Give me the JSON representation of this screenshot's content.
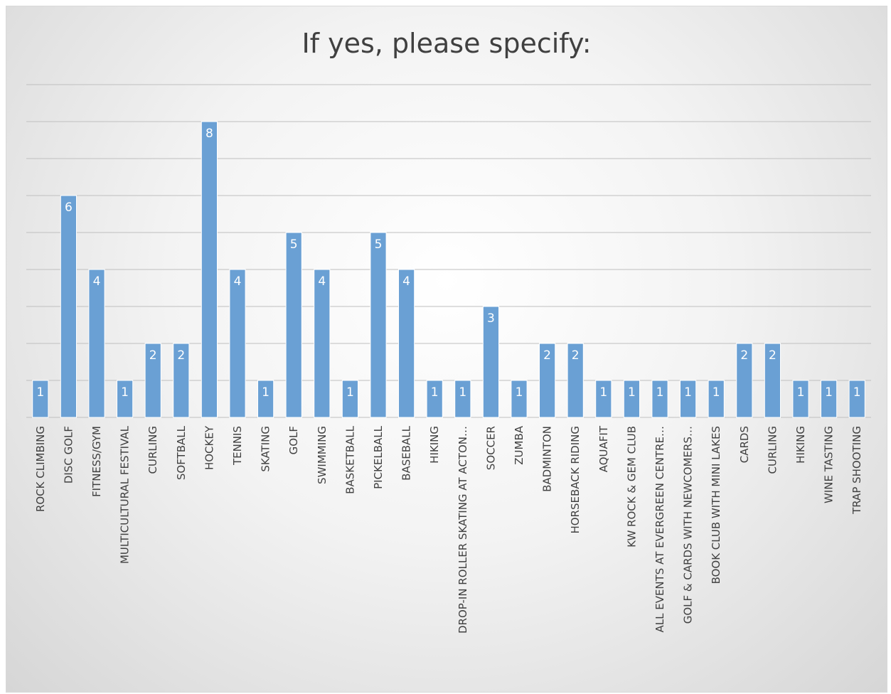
{
  "chart_data": {
    "type": "bar",
    "title": "If yes, please specify:",
    "xlabel": "",
    "ylabel": "",
    "ylim": [
      0,
      9
    ],
    "grid": true,
    "legend": "none",
    "bar_color": "#6aa0d4",
    "categories": [
      "ROCK CLIMBING",
      "DISC GOLF",
      "FITNESS/GYM",
      "MULTICULTURAL FESTIVAL",
      "CURLING",
      "SOFTBALL",
      "HOCKEY",
      "TENNIS",
      "SKATING",
      "GOLF",
      "SWIMMING",
      "BASKETBALL",
      "PICKELBALL",
      "BASEBALL",
      "HIKING",
      "DROP-IN ROLLER SKATING AT ACTON…",
      "SOCCER",
      "ZUMBA",
      "BADMINTON",
      "HORSEBACK RIDING",
      "AQUAFIT",
      "KW ROCK & GEM CLUB",
      "ALL EVENTS AT EVERGREEN CENTRE…",
      "GOLF & CARDS WITH NEWCOMERS…",
      "BOOK CLUB WITH MINI LAKES",
      "CARDS",
      "CURLING",
      "HIKING",
      "WINE TASTING",
      "TRAP SHOOTING"
    ],
    "values": [
      1,
      6,
      4,
      1,
      2,
      2,
      8,
      4,
      1,
      5,
      4,
      1,
      5,
      4,
      1,
      1,
      3,
      1,
      2,
      2,
      1,
      1,
      1,
      1,
      1,
      2,
      2,
      1,
      1,
      1
    ]
  }
}
